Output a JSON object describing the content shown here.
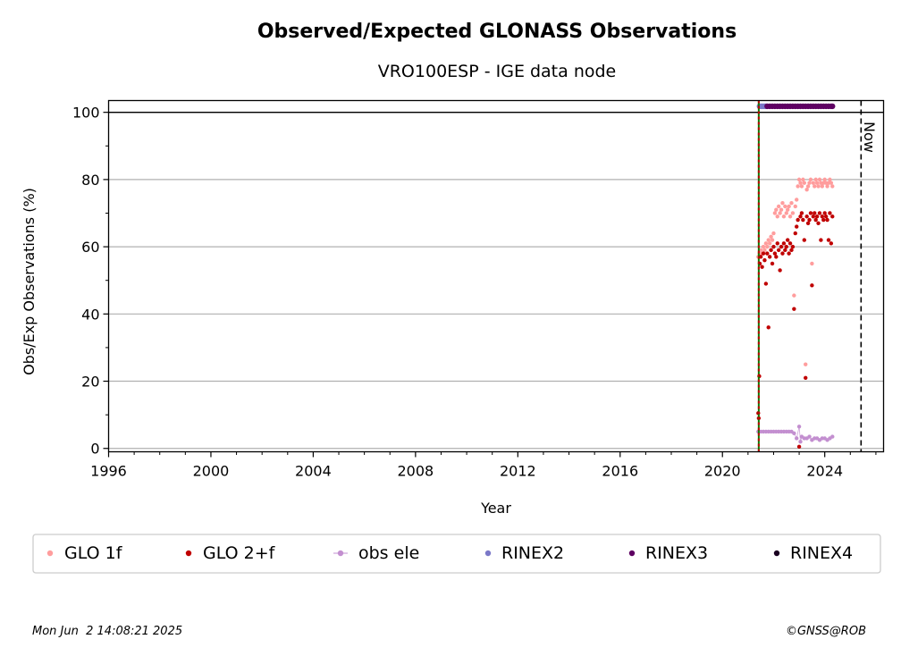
{
  "chart_data": {
    "type": "scatter",
    "title": "Observed/Expected GLONASS Observations",
    "subtitle": "VRO100ESP - IGE data node",
    "xlabel": "Year",
    "ylabel": "Obs/Exp Observations (%)",
    "xlim": [
      1996,
      2026.3
    ],
    "ylim": [
      -1,
      103.5
    ],
    "xticks": [
      1996,
      2000,
      2004,
      2008,
      2012,
      2016,
      2020,
      2024
    ],
    "yticks": [
      0,
      20,
      40,
      60,
      80,
      100
    ],
    "grid": "horizontal",
    "now_x": 2025.42,
    "now_label": "Now",
    "start_marker_x": 2021.42,
    "reference_line_y": 100,
    "series": [
      {
        "name": "GLO 1f",
        "color": "#ff9d9d",
        "points": [
          [
            2021.4,
            57
          ],
          [
            2021.45,
            58
          ],
          [
            2021.5,
            59
          ],
          [
            2021.55,
            58
          ],
          [
            2021.6,
            60
          ],
          [
            2021.65,
            59
          ],
          [
            2021.7,
            61
          ],
          [
            2021.75,
            60
          ],
          [
            2021.8,
            62
          ],
          [
            2021.85,
            61
          ],
          [
            2021.9,
            63
          ],
          [
            2021.95,
            62
          ],
          [
            2022.0,
            64
          ],
          [
            2022.05,
            70
          ],
          [
            2022.1,
            71
          ],
          [
            2022.15,
            69
          ],
          [
            2022.2,
            72
          ],
          [
            2022.25,
            70
          ],
          [
            2022.3,
            71
          ],
          [
            2022.35,
            73
          ],
          [
            2022.4,
            69
          ],
          [
            2022.45,
            72
          ],
          [
            2022.5,
            70
          ],
          [
            2022.55,
            71
          ],
          [
            2022.6,
            72
          ],
          [
            2022.65,
            69
          ],
          [
            2022.7,
            73
          ],
          [
            2022.75,
            70
          ],
          [
            2022.8,
            45.5
          ],
          [
            2022.85,
            72
          ],
          [
            2022.9,
            74
          ],
          [
            2022.95,
            78
          ],
          [
            2023.0,
            80
          ],
          [
            2023.05,
            79
          ],
          [
            2023.1,
            78
          ],
          [
            2023.15,
            80
          ],
          [
            2023.2,
            79
          ],
          [
            2023.25,
            25
          ],
          [
            2023.3,
            77
          ],
          [
            2023.35,
            78
          ],
          [
            2023.4,
            79
          ],
          [
            2023.45,
            80
          ],
          [
            2023.5,
            55
          ],
          [
            2023.55,
            79
          ],
          [
            2023.6,
            78
          ],
          [
            2023.65,
            80
          ],
          [
            2023.7,
            79
          ],
          [
            2023.75,
            78
          ],
          [
            2023.8,
            80
          ],
          [
            2023.85,
            79
          ],
          [
            2023.9,
            78
          ],
          [
            2023.95,
            79
          ],
          [
            2024.0,
            80
          ],
          [
            2024.05,
            79
          ],
          [
            2024.1,
            78
          ],
          [
            2024.15,
            79
          ],
          [
            2024.2,
            80
          ],
          [
            2024.25,
            79
          ],
          [
            2024.3,
            78
          ]
        ]
      },
      {
        "name": "GLO 2+f",
        "color": "#c00000",
        "points": [
          [
            2021.4,
            10.5
          ],
          [
            2021.42,
            9
          ],
          [
            2021.44,
            21.5
          ],
          [
            2021.46,
            55
          ],
          [
            2021.5,
            57
          ],
          [
            2021.55,
            54
          ],
          [
            2021.6,
            58
          ],
          [
            2021.65,
            56
          ],
          [
            2021.7,
            49
          ],
          [
            2021.75,
            58
          ],
          [
            2021.8,
            36
          ],
          [
            2021.85,
            57
          ],
          [
            2021.9,
            59
          ],
          [
            2021.95,
            55
          ],
          [
            2022.0,
            60
          ],
          [
            2022.05,
            58
          ],
          [
            2022.1,
            57
          ],
          [
            2022.15,
            61
          ],
          [
            2022.2,
            59
          ],
          [
            2022.25,
            53
          ],
          [
            2022.3,
            60
          ],
          [
            2022.35,
            58
          ],
          [
            2022.4,
            61
          ],
          [
            2022.45,
            59
          ],
          [
            2022.5,
            60
          ],
          [
            2022.55,
            62
          ],
          [
            2022.6,
            58
          ],
          [
            2022.65,
            61
          ],
          [
            2022.7,
            59
          ],
          [
            2022.75,
            60
          ],
          [
            2022.8,
            41.5
          ],
          [
            2022.85,
            64
          ],
          [
            2022.9,
            66
          ],
          [
            2022.95,
            68
          ],
          [
            2023.0,
            0.5
          ],
          [
            2023.05,
            69
          ],
          [
            2023.1,
            70
          ],
          [
            2023.15,
            68
          ],
          [
            2023.2,
            62
          ],
          [
            2023.25,
            21
          ],
          [
            2023.3,
            69
          ],
          [
            2023.35,
            67
          ],
          [
            2023.4,
            68
          ],
          [
            2023.45,
            70
          ],
          [
            2023.5,
            48.5
          ],
          [
            2023.55,
            69
          ],
          [
            2023.6,
            70
          ],
          [
            2023.65,
            68
          ],
          [
            2023.7,
            69
          ],
          [
            2023.75,
            67
          ],
          [
            2023.8,
            70
          ],
          [
            2023.85,
            62
          ],
          [
            2023.9,
            69
          ],
          [
            2023.95,
            68
          ],
          [
            2024.0,
            70
          ],
          [
            2024.05,
            69
          ],
          [
            2024.1,
            68
          ],
          [
            2024.15,
            62
          ],
          [
            2024.2,
            70
          ],
          [
            2024.25,
            61
          ],
          [
            2024.3,
            69
          ]
        ]
      },
      {
        "name": "obs ele",
        "color": "#c38fd0",
        "points": [
          [
            2021.4,
            5
          ],
          [
            2021.5,
            5
          ],
          [
            2021.6,
            5
          ],
          [
            2021.7,
            5
          ],
          [
            2021.8,
            5
          ],
          [
            2021.9,
            5
          ],
          [
            2022.0,
            5
          ],
          [
            2022.1,
            5
          ],
          [
            2022.2,
            5
          ],
          [
            2022.3,
            5
          ],
          [
            2022.4,
            5
          ],
          [
            2022.5,
            5
          ],
          [
            2022.6,
            5
          ],
          [
            2022.7,
            5
          ],
          [
            2022.8,
            4.5
          ],
          [
            2022.9,
            3
          ],
          [
            2023.0,
            6.5
          ],
          [
            2023.05,
            2
          ],
          [
            2023.1,
            3.5
          ],
          [
            2023.2,
            3
          ],
          [
            2023.3,
            3
          ],
          [
            2023.4,
            3.5
          ],
          [
            2023.5,
            2.5
          ],
          [
            2023.6,
            3
          ],
          [
            2023.7,
            3
          ],
          [
            2023.8,
            2.5
          ],
          [
            2023.9,
            3
          ],
          [
            2024.0,
            3
          ],
          [
            2024.1,
            2.5
          ],
          [
            2024.2,
            3
          ],
          [
            2024.3,
            3.5
          ]
        ]
      },
      {
        "name": "RINEX2",
        "color": "#7b78c8",
        "points": [
          [
            2021.45,
            101.8
          ],
          [
            2021.5,
            101.8
          ],
          [
            2021.55,
            101.8
          ],
          [
            2021.6,
            101.8
          ],
          [
            2021.65,
            101.8
          ],
          [
            2021.7,
            101.8
          ]
        ]
      },
      {
        "name": "RINEX3",
        "color": "#5e0062",
        "points": [
          [
            2021.75,
            101.8
          ],
          [
            2021.85,
            101.8
          ],
          [
            2021.95,
            101.8
          ],
          [
            2022.05,
            101.8
          ],
          [
            2022.15,
            101.8
          ],
          [
            2022.25,
            101.8
          ],
          [
            2022.35,
            101.8
          ],
          [
            2022.45,
            101.8
          ],
          [
            2022.55,
            101.8
          ],
          [
            2022.65,
            101.8
          ],
          [
            2022.75,
            101.8
          ],
          [
            2022.85,
            101.8
          ],
          [
            2022.95,
            101.8
          ],
          [
            2023.05,
            101.8
          ],
          [
            2023.15,
            101.8
          ],
          [
            2023.25,
            101.8
          ],
          [
            2023.35,
            101.8
          ],
          [
            2023.45,
            101.8
          ],
          [
            2023.55,
            101.8
          ],
          [
            2023.65,
            101.8
          ],
          [
            2023.75,
            101.8
          ],
          [
            2023.85,
            101.8
          ],
          [
            2023.95,
            101.8
          ],
          [
            2024.05,
            101.8
          ],
          [
            2024.15,
            101.8
          ],
          [
            2024.25,
            101.8
          ],
          [
            2024.3,
            101.8
          ]
        ]
      },
      {
        "name": "RINEX4",
        "color": "#1a0020",
        "points": []
      }
    ],
    "legend": [
      {
        "label": "GLO 1f",
        "color": "#ff9d9d",
        "marker": "dot"
      },
      {
        "label": "GLO 2+f",
        "color": "#c00000",
        "marker": "dot"
      },
      {
        "label": "obs ele",
        "color": "#c38fd0",
        "marker": "line-dot"
      },
      {
        "label": "RINEX2",
        "color": "#7b78c8",
        "marker": "dot"
      },
      {
        "label": "RINEX3",
        "color": "#5e0062",
        "marker": "dot"
      },
      {
        "label": "RINEX4",
        "color": "#1a0020",
        "marker": "dot"
      }
    ],
    "legend_position": "bottom"
  },
  "footer": {
    "timestamp": "Mon Jun  2 14:08:21 2025",
    "credit": "©GNSS@ROB"
  }
}
